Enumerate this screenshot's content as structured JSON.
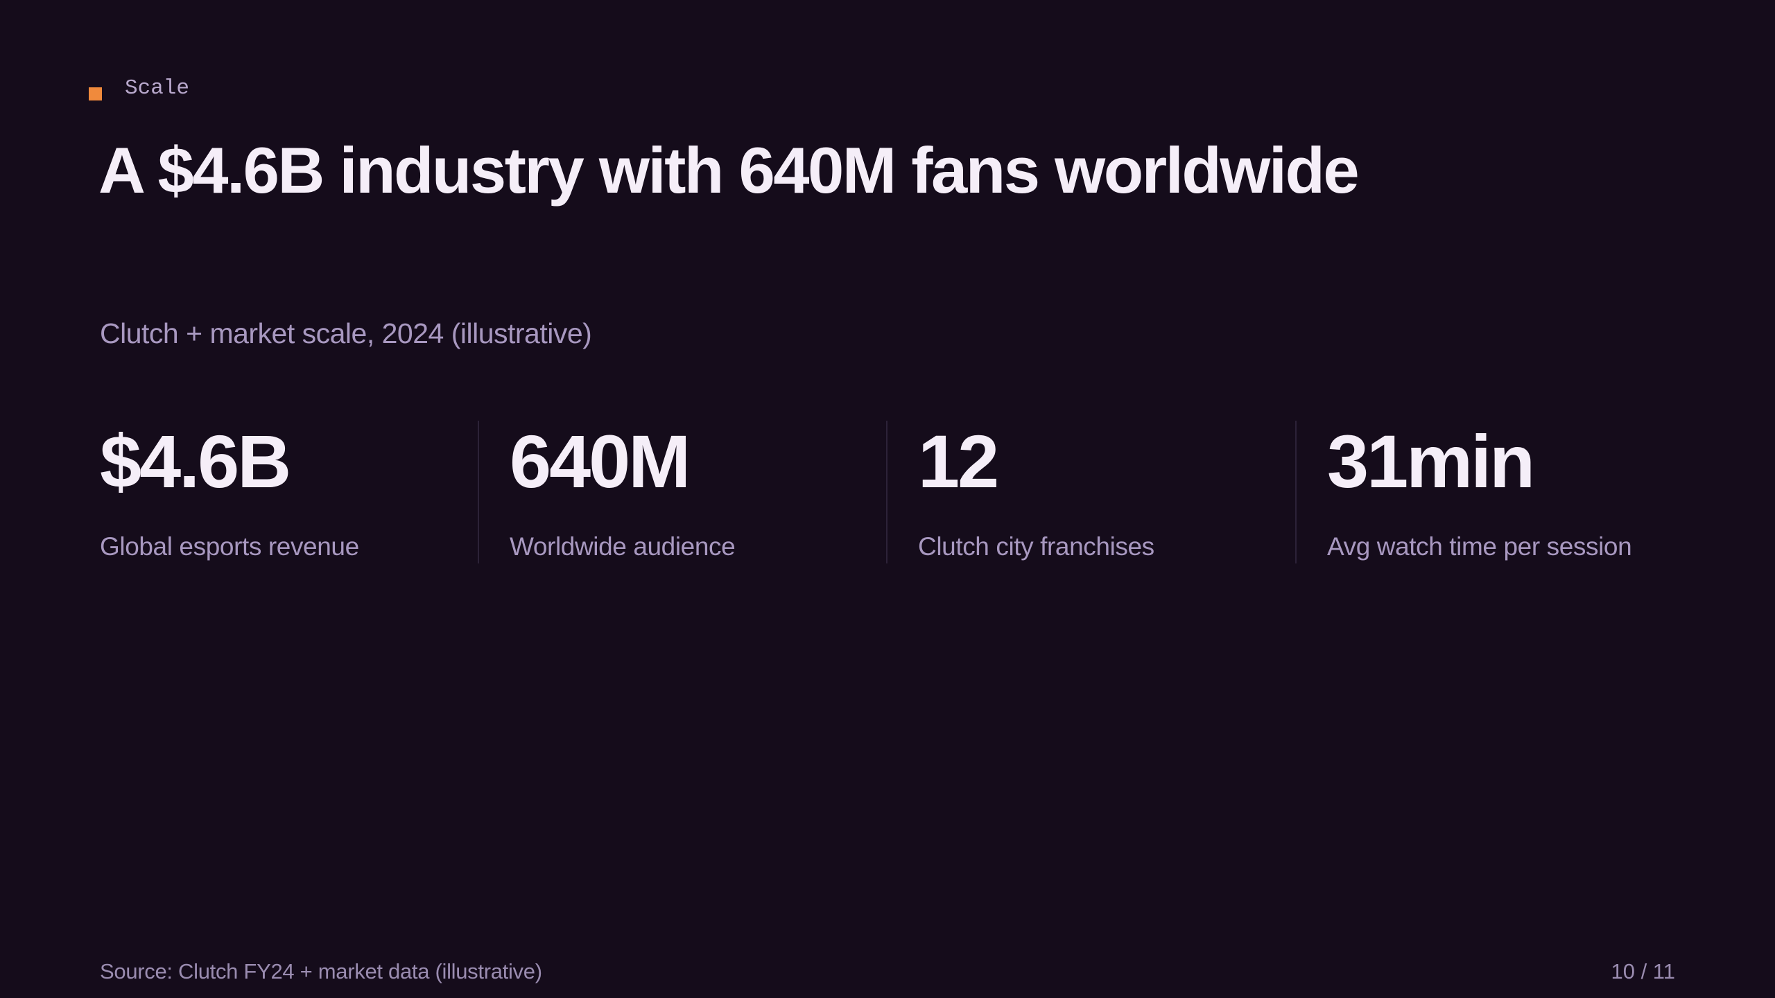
{
  "eyebrow": "Scale",
  "title": "A $4.6B industry with 640M fans worldwide",
  "subtitle": "Clutch + market scale, 2024 (illustrative)",
  "stats": [
    {
      "value": "$4.6B",
      "label": "Global esports revenue"
    },
    {
      "value": "640M",
      "label": "Worldwide audience"
    },
    {
      "value": "12",
      "label": "Clutch city franchises"
    },
    {
      "value": "31min",
      "label": "Avg watch time per session"
    }
  ],
  "footer": {
    "source": "Source: Clutch FY24 + market data (illustrative)",
    "page": "10 / 11"
  }
}
